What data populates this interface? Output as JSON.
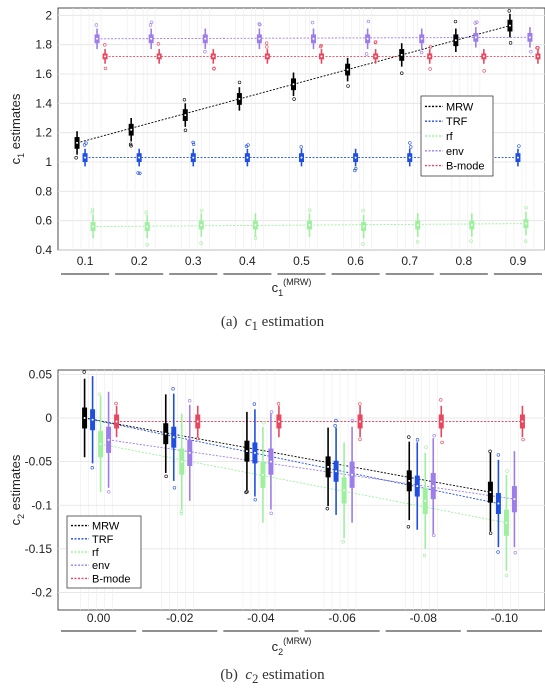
{
  "captions": [
    {
      "prefix": "(a)",
      "var": "c",
      "sub": "1",
      "text": "estimation"
    },
    {
      "prefix": "(b)",
      "var": "c",
      "sub": "2",
      "text": "estimation"
    }
  ],
  "chart_data": [
    {
      "type": "box",
      "title": "",
      "xlabel": {
        "main": "c",
        "sub": "1",
        "sup": "(MRW)"
      },
      "ylabel": {
        "main": "c",
        "sub": "1",
        "rest": " estimates"
      },
      "categories": [
        "0.1",
        "0.2",
        "0.3",
        "0.4",
        "0.5",
        "0.6",
        "0.7",
        "0.8",
        "0.9"
      ],
      "ylim": [
        0.4,
        2.05
      ],
      "yticks": [
        0.4,
        0.6,
        0.8,
        1.0,
        1.2,
        1.4,
        1.6,
        1.8,
        2.0
      ],
      "ytick_labels": [
        "0.4",
        "0.6",
        "0.8",
        "1",
        "1.2",
        "1.4",
        "1.6",
        "1.8",
        "2"
      ],
      "grid": true,
      "legend_position": "right-middle",
      "series": [
        {
          "name": "MRW",
          "color": "#000000",
          "medians": [
            1.13,
            1.22,
            1.32,
            1.43,
            1.53,
            1.63,
            1.73,
            1.83,
            1.93
          ],
          "spread": [
            0.04,
            0.08
          ]
        },
        {
          "name": "TRF",
          "color": "#1f4fe0",
          "medians": [
            1.03,
            1.03,
            1.03,
            1.03,
            1.03,
            1.03,
            1.03,
            1.03,
            1.03
          ],
          "spread": [
            0.03,
            0.06
          ]
        },
        {
          "name": "rf",
          "color": "#9ef09e",
          "medians": [
            0.56,
            0.56,
            0.57,
            0.57,
            0.57,
            0.56,
            0.57,
            0.57,
            0.58
          ],
          "spread": [
            0.03,
            0.08
          ]
        },
        {
          "name": "env",
          "color": "#9d7de8",
          "medians": [
            1.84,
            1.84,
            1.84,
            1.84,
            1.84,
            1.84,
            1.84,
            1.85,
            1.85
          ],
          "spread": [
            0.03,
            0.07
          ]
        },
        {
          "name": "B-mode",
          "color": "#e8475f",
          "medians": [
            1.72,
            1.72,
            1.72,
            1.72,
            1.72,
            1.72,
            1.72,
            1.72,
            1.72
          ],
          "spread": [
            0.02,
            0.05
          ]
        }
      ]
    },
    {
      "type": "box",
      "title": "",
      "xlabel": {
        "main": "c",
        "sub": "2",
        "sup": "(MRW)"
      },
      "ylabel": {
        "main": "c",
        "sub": "2",
        "rest": " estimates"
      },
      "categories": [
        "0.00",
        "-0.02",
        "-0.04",
        "-0.06",
        "-0.08",
        "-0.10"
      ],
      "ylim": [
        -0.22,
        0.055
      ],
      "yticks": [
        -0.2,
        -0.15,
        -0.1,
        -0.05,
        0,
        0.05
      ],
      "ytick_labels": [
        "-0.2",
        "-0.15",
        "-0.1",
        "-0.05",
        "0",
        "0.05"
      ],
      "grid": true,
      "legend_position": "bottom-left",
      "series": [
        {
          "name": "MRW",
          "color": "#000000",
          "medians": [
            0.0,
            -0.018,
            -0.038,
            -0.056,
            -0.072,
            -0.085
          ],
          "spread": [
            0.012,
            0.045
          ]
        },
        {
          "name": "TRF",
          "color": "#1f4fe0",
          "medians": [
            -0.002,
            -0.022,
            -0.04,
            -0.061,
            -0.078,
            -0.098
          ],
          "spread": [
            0.012,
            0.05
          ]
        },
        {
          "name": "rf",
          "color": "#9ef09e",
          "medians": [
            -0.03,
            -0.05,
            -0.065,
            -0.083,
            -0.095,
            -0.12
          ],
          "spread": [
            0.015,
            0.055
          ]
        },
        {
          "name": "env",
          "color": "#9d7de8",
          "medians": [
            -0.025,
            -0.04,
            -0.05,
            -0.065,
            -0.078,
            -0.093
          ],
          "spread": [
            0.015,
            0.055
          ]
        },
        {
          "name": "B-mode",
          "color": "#e8475f",
          "medians": [
            -0.004,
            -0.004,
            -0.004,
            -0.004,
            -0.004,
            -0.004
          ],
          "spread": [
            0.008,
            0.018
          ]
        }
      ]
    }
  ]
}
